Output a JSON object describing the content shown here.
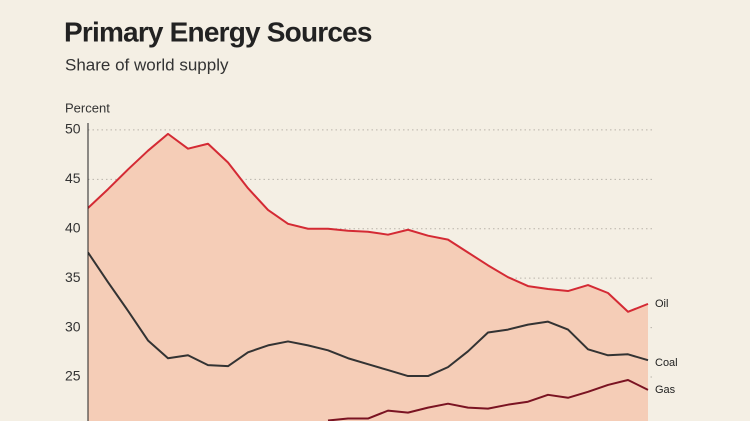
{
  "chart_data": {
    "type": "line",
    "title": "Primary Energy Sources",
    "subtitle": "Share of world supply",
    "y_label": "Percent",
    "categories": [
      null,
      null,
      null,
      null,
      null,
      null,
      null,
      null,
      null,
      null,
      null,
      null,
      null,
      null,
      null,
      null,
      null,
      null,
      null,
      null,
      null,
      null,
      null,
      null,
      null,
      null,
      null,
      null,
      null
    ],
    "series": [
      {
        "name": "Oil",
        "color": "#d42a34",
        "fill": "#f5cdb7",
        "values": [
          42.1,
          44.0,
          46.0,
          47.9,
          49.6,
          48.1,
          48.6,
          46.7,
          44.1,
          41.9,
          40.5,
          40.0,
          40.0,
          39.8,
          39.7,
          39.4,
          39.9,
          39.3,
          38.9,
          37.6,
          36.3,
          35.1,
          34.2,
          33.9,
          33.7,
          34.3,
          33.5,
          31.6,
          32.4
        ]
      },
      {
        "name": "Coal",
        "color": "#333333",
        "values": [
          37.6,
          34.6,
          31.7,
          28.7,
          26.9,
          27.2,
          26.2,
          26.1,
          27.5,
          28.2,
          28.6,
          28.2,
          27.7,
          26.9,
          26.3,
          25.7,
          25.1,
          25.1,
          26.0,
          27.6,
          29.5,
          29.8,
          30.3,
          30.6,
          29.8,
          27.8,
          27.2,
          27.3,
          26.7
        ]
      },
      {
        "name": "Gas",
        "color": "#7a1322",
        "values": [
          null,
          null,
          null,
          null,
          null,
          null,
          null,
          null,
          null,
          null,
          null,
          null,
          20.6,
          20.8,
          20.8,
          21.6,
          21.4,
          21.9,
          22.3,
          21.9,
          21.8,
          22.2,
          22.5,
          23.2,
          22.9,
          23.5,
          24.2,
          24.7,
          23.7
        ]
      }
    ],
    "ylim": [
      20.55,
      50.7
    ],
    "yticks": [
      25,
      30,
      35,
      40,
      45,
      50
    ],
    "grid": true
  }
}
